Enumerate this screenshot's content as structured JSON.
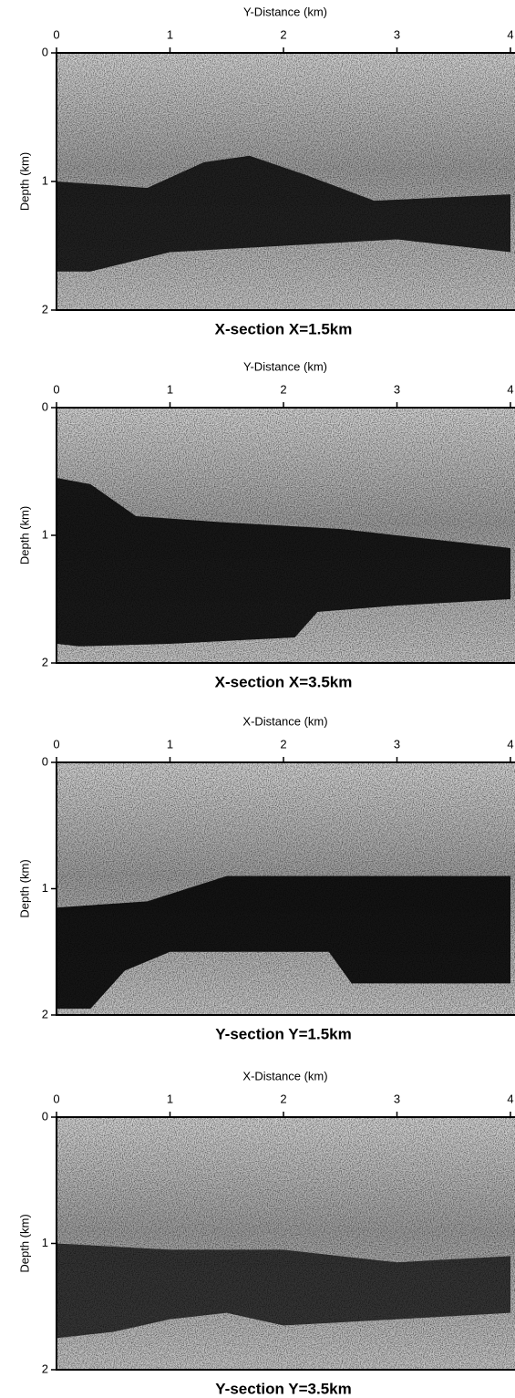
{
  "chart_data": [
    {
      "type": "image",
      "title": "X-section X=1.5km",
      "x_label": "Y-Distance (km)",
      "y_label": "Depth (km)",
      "xlim": [
        0,
        4
      ],
      "xticks": [
        0,
        1,
        2,
        3,
        4
      ],
      "ylim": [
        0,
        2
      ],
      "yticks": [
        0,
        1,
        2
      ]
    },
    {
      "type": "image",
      "title": "X-section X=3.5km",
      "x_label": "Y-Distance (km)",
      "y_label": "Depth (km)",
      "xlim": [
        0,
        4
      ],
      "xticks": [
        0,
        1,
        2,
        3,
        4
      ],
      "ylim": [
        0,
        2
      ],
      "yticks": [
        0,
        1,
        2
      ]
    },
    {
      "type": "image",
      "title": "Y-section Y=1.5km",
      "x_label": "X-Distance (km)",
      "y_label": "Depth (km)",
      "xlim": [
        0,
        4
      ],
      "xticks": [
        0,
        1,
        2,
        3,
        4
      ],
      "ylim": [
        0,
        2
      ],
      "yticks": [
        0,
        1,
        2
      ]
    },
    {
      "type": "image",
      "title": "Y-section Y=3.5km",
      "x_label": "X-Distance (km)",
      "y_label": "Depth (km)",
      "xlim": [
        0,
        4
      ],
      "xticks": [
        0,
        1,
        2,
        3,
        4
      ],
      "ylim": [
        0,
        2
      ],
      "yticks": [
        0,
        1,
        2
      ]
    }
  ]
}
